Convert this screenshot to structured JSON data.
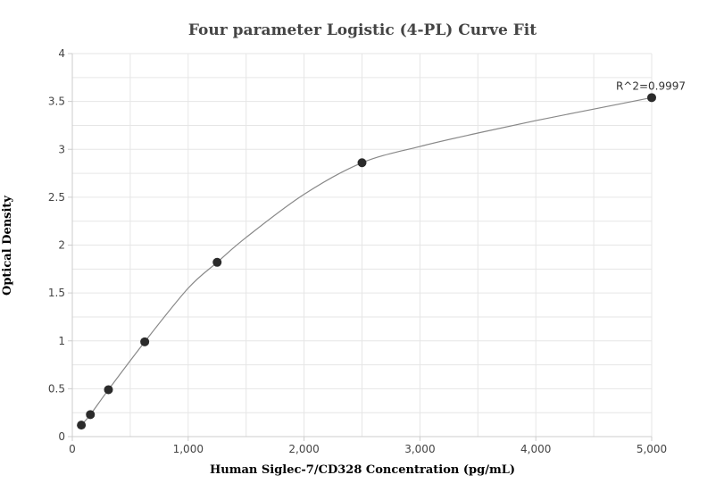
{
  "chart_data": {
    "type": "scatter",
    "title": "Four parameter Logistic (4-PL) Curve Fit",
    "xlabel": "Human Siglec-7/CD328 Concentration (pg/mL)",
    "ylabel": "Optical Density",
    "xlim": [
      0,
      5000
    ],
    "ylim": [
      0,
      4
    ],
    "x_ticks": [
      0,
      1000,
      2000,
      3000,
      4000,
      5000
    ],
    "x_tick_labels": [
      "0",
      "1,000",
      "2,000",
      "3,000",
      "4,000",
      "5,000"
    ],
    "y_ticks": [
      0,
      0.5,
      1,
      1.5,
      2,
      2.5,
      3,
      3.5,
      4
    ],
    "y_tick_labels": [
      "0",
      "0.5",
      "1",
      "1.5",
      "2",
      "2.5",
      "3",
      "3.5",
      "4"
    ],
    "grid": true,
    "series": [
      {
        "x": [
          78,
          156,
          312,
          625,
          1250,
          2500,
          5000
        ],
        "y": [
          0.12,
          0.23,
          0.49,
          0.99,
          1.82,
          2.86,
          3.54
        ]
      }
    ],
    "fit_curve": {
      "x": [
        78,
        156,
        312,
        625,
        1000,
        1250,
        1500,
        2000,
        2500,
        3000,
        3500,
        4000,
        4500,
        5000
      ],
      "y": [
        0.12,
        0.23,
        0.49,
        0.99,
        1.55,
        1.82,
        2.08,
        2.53,
        2.86,
        3.03,
        3.17,
        3.3,
        3.42,
        3.54
      ]
    },
    "annotation": "R^2=0.9997",
    "colors": {
      "marker": "#2b2b2b",
      "curve": "#888888",
      "grid": "#e6e6e6",
      "axis": "#cccccc"
    }
  }
}
